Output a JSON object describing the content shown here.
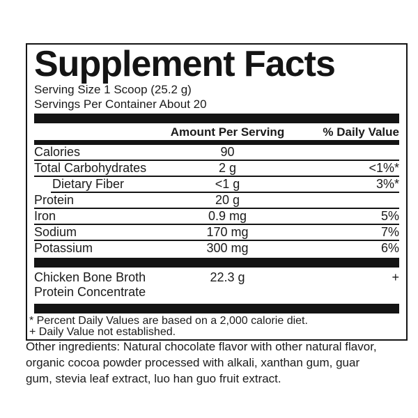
{
  "label": {
    "title": "Supplement Facts",
    "serving_size": "Serving Size 1 Scoop (25.2 g)",
    "servings_per_container": "Servings Per Container About 20",
    "columns": {
      "amount": "Amount Per Serving",
      "daily_value": "% Daily Value"
    },
    "rows": [
      {
        "name": "Calories",
        "amount": "90",
        "dv": ""
      },
      {
        "name": "Total Carbohydrates",
        "amount": "2 g",
        "dv": "<1%*"
      },
      {
        "name": "Dietary Fiber",
        "amount": "<1 g",
        "dv": "3%*"
      },
      {
        "name": "Protein",
        "amount": "20 g",
        "dv": ""
      },
      {
        "name": "Iron",
        "amount": "0.9 mg",
        "dv": "5%"
      },
      {
        "name": "Sodium",
        "amount": "170 mg",
        "dv": "7%"
      },
      {
        "name": "Potassium",
        "amount": "300 mg",
        "dv": "6%"
      }
    ],
    "blend_row": {
      "name_line1": "Chicken Bone Broth",
      "name_line2": "Protein Concentrate",
      "amount": "22.3 g",
      "dv": "+"
    },
    "footnotes": [
      "* Percent Daily Values are based on a 2,000 calorie diet.",
      "+ Daily Value not established."
    ]
  },
  "other_ingredients": "Other ingredients: Natural chocolate flavor with other natural flavor, organic cocoa powder processed with alkali, xanthan gum, guar gum, stevia leaf extract, luo han guo fruit extract.",
  "colors": {
    "ink": "#1a1a1a",
    "bar": "#141414",
    "background": "#ffffff"
  }
}
